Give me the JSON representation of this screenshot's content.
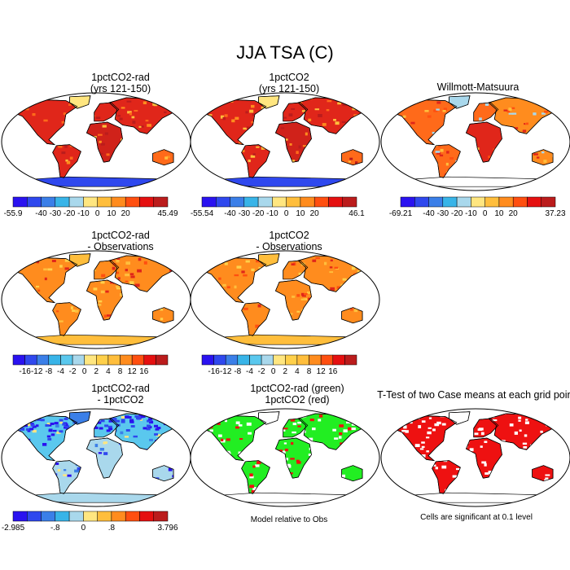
{
  "title": "JJA TSA (C)",
  "panels": [
    {
      "id": "p1",
      "title_lines": [
        "1pctCO2-rad",
        "(yrs 121-150)"
      ],
      "mode": "abs"
    },
    {
      "id": "p2",
      "title_lines": [
        "1pctCO2",
        "(yrs 121-150)"
      ],
      "mode": "abs"
    },
    {
      "id": "p3",
      "title_lines": [
        "Willmott-Matsuura"
      ],
      "mode": "obs"
    },
    {
      "id": "p4",
      "title_lines": [
        "1pctCO2-rad",
        "- Observations"
      ],
      "mode": "diff"
    },
    {
      "id": "p5",
      "title_lines": [
        "1pctCO2",
        "- Observations"
      ],
      "mode": "diff"
    },
    {
      "id": "p7",
      "title_lines": [
        "1pctCO2-rad",
        "- 1pctCO2"
      ],
      "mode": "cdiff"
    },
    {
      "id": "p8",
      "title_lines": [
        "1pctCO2-rad (green)",
        "1pctCO2 (red)"
      ],
      "mode": "green"
    },
    {
      "id": "p9",
      "title_lines": [
        "T-Test of two Case means at each grid point"
      ],
      "mode": "red"
    }
  ],
  "colorbars": [
    {
      "id": "cb1",
      "colors": [
        "#2a12f0",
        "#2f48ee",
        "#3b7fe8",
        "#38b4e8",
        "#a9d8ec",
        "#ffe680",
        "#ffbe3c",
        "#ff8c1e",
        "#ff4f10",
        "#e51010",
        "#bb1c1c"
      ],
      "labels": [
        "-55.9",
        "-40",
        "-30",
        "-20",
        "-10",
        "0",
        "10",
        "20",
        "45.49"
      ],
      "label_pos": [
        0,
        2,
        3,
        4,
        5,
        6,
        7,
        8,
        11
      ]
    },
    {
      "id": "cb2",
      "colors": [
        "#2a12f0",
        "#2f48ee",
        "#3b7fe8",
        "#38b4e8",
        "#a9d8ec",
        "#ffe680",
        "#ffbe3c",
        "#ff8c1e",
        "#ff4f10",
        "#e51010",
        "#bb1c1c"
      ],
      "labels": [
        "-55.54",
        "-40",
        "-30",
        "-20",
        "-10",
        "0",
        "10",
        "20",
        "46.1"
      ],
      "label_pos": [
        0,
        2,
        3,
        4,
        5,
        6,
        7,
        8,
        11
      ]
    },
    {
      "id": "cb3",
      "colors": [
        "#2a12f0",
        "#2f48ee",
        "#3b7fe8",
        "#38b4e8",
        "#a9d8ec",
        "#ffe680",
        "#ffbe3c",
        "#ff8c1e",
        "#ff4f10",
        "#e51010",
        "#bb1c1c"
      ],
      "labels": [
        "-69.21",
        "-40",
        "-30",
        "-20",
        "-10",
        "0",
        "10",
        "20",
        "37.23"
      ],
      "label_pos": [
        0,
        2,
        3,
        4,
        5,
        6,
        7,
        8,
        11
      ]
    },
    {
      "id": "cb4",
      "colors": [
        "#2a12f0",
        "#2f48ee",
        "#3b7fe8",
        "#38b4e8",
        "#5ac8ee",
        "#a9d8ec",
        "#ffe680",
        "#ffd04a",
        "#ffbe3c",
        "#ff8c1e",
        "#ff4f10",
        "#e51010",
        "#bb1c1c"
      ],
      "labels": [
        "-16",
        "-12",
        "-8",
        "-4",
        "-2",
        "0",
        "2",
        "4",
        "8",
        "12",
        "16"
      ],
      "label_pos": [
        1,
        2,
        3,
        4,
        5,
        6,
        7,
        8,
        9,
        10,
        11
      ]
    },
    {
      "id": "cb5",
      "colors": [
        "#2a12f0",
        "#2f48ee",
        "#3b7fe8",
        "#38b4e8",
        "#5ac8ee",
        "#a9d8ec",
        "#ffe680",
        "#ffd04a",
        "#ffbe3c",
        "#ff8c1e",
        "#ff4f10",
        "#e51010",
        "#bb1c1c"
      ],
      "labels": [
        "-16",
        "-12",
        "-8",
        "-4",
        "-2",
        "0",
        "2",
        "4",
        "8",
        "12",
        "16"
      ],
      "label_pos": [
        1,
        2,
        3,
        4,
        5,
        6,
        7,
        8,
        9,
        10,
        11
      ]
    },
    {
      "id": "cb7",
      "colors": [
        "#2a12f0",
        "#2f48ee",
        "#3b7fe8",
        "#38b4e8",
        "#a9d8ec",
        "#ffe680",
        "#ffbe3c",
        "#ff8c1e",
        "#ff4f10",
        "#e51010",
        "#bb1c1c"
      ],
      "labels": [
        "-2.985",
        "-.8",
        "0",
        ".8",
        "3.796"
      ],
      "label_pos": [
        0,
        3,
        5,
        7,
        11
      ]
    }
  ],
  "notes": {
    "model_relative": "Model relative to Obs",
    "significance": "Cells are significant at 0.1 level"
  },
  "palette": {
    "ant_abs": "#2f48ee",
    "ant_cdiff": "#a9d8ec",
    "green": "#22ee22",
    "red": "#ee1111"
  }
}
